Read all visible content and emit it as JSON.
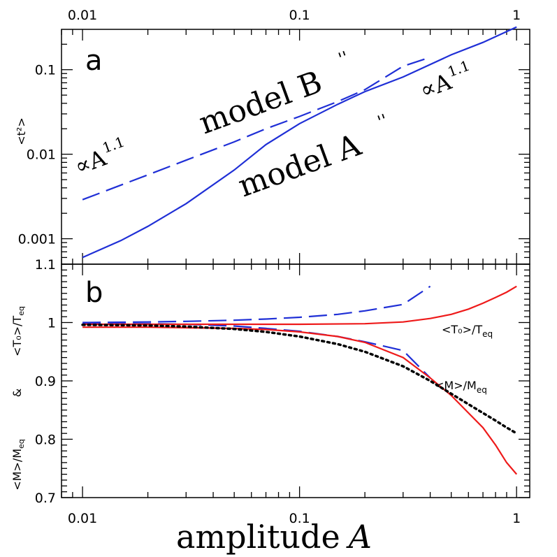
{
  "colors": {
    "blue": "#1f2fd6",
    "red": "#ee1a1a",
    "black": "#000000"
  },
  "xlabel": "amplitude",
  "xlabel_symbol": "A",
  "chart_data": [
    {
      "panel": "a",
      "type": "line",
      "xscale": "log",
      "yscale": "log",
      "xlim": [
        0.008,
        1.15
      ],
      "ylim": [
        0.0005,
        0.3
      ],
      "x_ticks": [
        0.01,
        0.1,
        1
      ],
      "x_tick_labels": [
        "0.01",
        "0.1",
        "1"
      ],
      "y_ticks": [
        0.001,
        0.01,
        0.1
      ],
      "y_tick_labels": [
        "0.001",
        "0.01",
        "0.1"
      ],
      "ylabel": "<t²>",
      "series": [
        {
          "style": "solid",
          "color": "#1f2fd6",
          "x": [
            0.01,
            0.015,
            0.02,
            0.03,
            0.05,
            0.07,
            0.1,
            0.15,
            0.2,
            0.3,
            0.5,
            0.7,
            1.0
          ],
          "y": [
            0.0006,
            0.00095,
            0.0014,
            0.0026,
            0.0065,
            0.013,
            0.023,
            0.039,
            0.055,
            0.082,
            0.15,
            0.21,
            0.32
          ]
        },
        {
          "style": "dashed",
          "color": "#1f2fd6",
          "x": [
            0.01,
            0.02,
            0.03,
            0.05,
            0.07,
            0.1,
            0.15,
            0.2,
            0.3,
            0.4
          ],
          "y": [
            0.0029,
            0.0057,
            0.0085,
            0.014,
            0.02,
            0.028,
            0.042,
            0.058,
            0.11,
            0.14
          ]
        }
      ],
      "annotations": [
        {
          "id": "model-b",
          "text": "model B",
          "prime": "''"
        },
        {
          "id": "model-a",
          "text": "model A",
          "prime": "''"
        },
        {
          "id": "prop-left",
          "text": "∝A",
          "sup": "1.1"
        },
        {
          "id": "prop-right",
          "text": "∝A",
          "sup": "1.1"
        }
      ]
    },
    {
      "panel": "b",
      "type": "line",
      "xscale": "log",
      "yscale": "linear",
      "xlim": [
        0.008,
        1.15
      ],
      "ylim": [
        0.7,
        1.1
      ],
      "x_ticks": [
        0.01,
        0.1,
        1
      ],
      "x_tick_labels": [
        "0.01",
        "0.1",
        "1"
      ],
      "y_ticks": [
        0.7,
        0.8,
        0.9,
        1.0,
        1.1
      ],
      "y_tick_labels": [
        "0.7",
        "0.8",
        "0.9",
        "1",
        "1.1"
      ],
      "ylabel_top": "<T₀>/T",
      "ylabel_top_sub": "eq",
      "ylabel_amp": "&",
      "ylabel_bottom": "<M>/M",
      "ylabel_bottom_sub": "eq",
      "series": [
        {
          "style": "dashed",
          "color": "#1f2fd6",
          "quantity": "T",
          "x": [
            0.01,
            0.02,
            0.03,
            0.05,
            0.07,
            0.1,
            0.15,
            0.2,
            0.3,
            0.4
          ],
          "y": [
            1.0,
            1.001,
            1.002,
            1.004,
            1.006,
            1.009,
            1.014,
            1.02,
            1.031,
            1.062
          ]
        },
        {
          "style": "dashed",
          "color": "#1f2fd6",
          "quantity": "M",
          "x": [
            0.01,
            0.02,
            0.03,
            0.05,
            0.07,
            0.1,
            0.15,
            0.2,
            0.3,
            0.4
          ],
          "y": [
            0.998,
            0.998,
            0.997,
            0.994,
            0.99,
            0.985,
            0.976,
            0.967,
            0.952,
            0.905
          ]
        },
        {
          "style": "solid",
          "color": "#ee1a1a",
          "quantity": "T",
          "x": [
            0.01,
            0.02,
            0.05,
            0.1,
            0.2,
            0.3,
            0.4,
            0.5,
            0.6,
            0.7,
            0.8,
            0.9,
            1.0
          ],
          "y": [
            0.997,
            0.997,
            0.997,
            0.997,
            0.998,
            1.001,
            1.007,
            1.014,
            1.023,
            1.033,
            1.043,
            1.052,
            1.062
          ]
        },
        {
          "style": "solid",
          "color": "#ee1a1a",
          "quantity": "M",
          "x": [
            0.01,
            0.02,
            0.03,
            0.05,
            0.07,
            0.1,
            0.15,
            0.2,
            0.3,
            0.4,
            0.5,
            0.6,
            0.7,
            0.8,
            0.9,
            1.0
          ],
          "y": [
            0.992,
            0.992,
            0.991,
            0.99,
            0.988,
            0.984,
            0.976,
            0.966,
            0.94,
            0.905,
            0.875,
            0.845,
            0.82,
            0.79,
            0.76,
            0.74
          ]
        },
        {
          "style": "dotted",
          "color": "#000000",
          "quantity": "M",
          "x": [
            0.01,
            0.02,
            0.03,
            0.05,
            0.07,
            0.1,
            0.15,
            0.2,
            0.3,
            0.4,
            0.5,
            0.6,
            0.7,
            0.8,
            0.9,
            1.0
          ],
          "y": [
            0.996,
            0.995,
            0.993,
            0.989,
            0.984,
            0.976,
            0.963,
            0.95,
            0.925,
            0.9,
            0.878,
            0.86,
            0.845,
            0.832,
            0.82,
            0.81
          ]
        }
      ],
      "annotations": [
        {
          "id": "t0-label",
          "text": "<T₀>/T",
          "sub": "eq"
        },
        {
          "id": "m-label",
          "text": "<M>/M",
          "sub": "eq"
        }
      ]
    }
  ]
}
